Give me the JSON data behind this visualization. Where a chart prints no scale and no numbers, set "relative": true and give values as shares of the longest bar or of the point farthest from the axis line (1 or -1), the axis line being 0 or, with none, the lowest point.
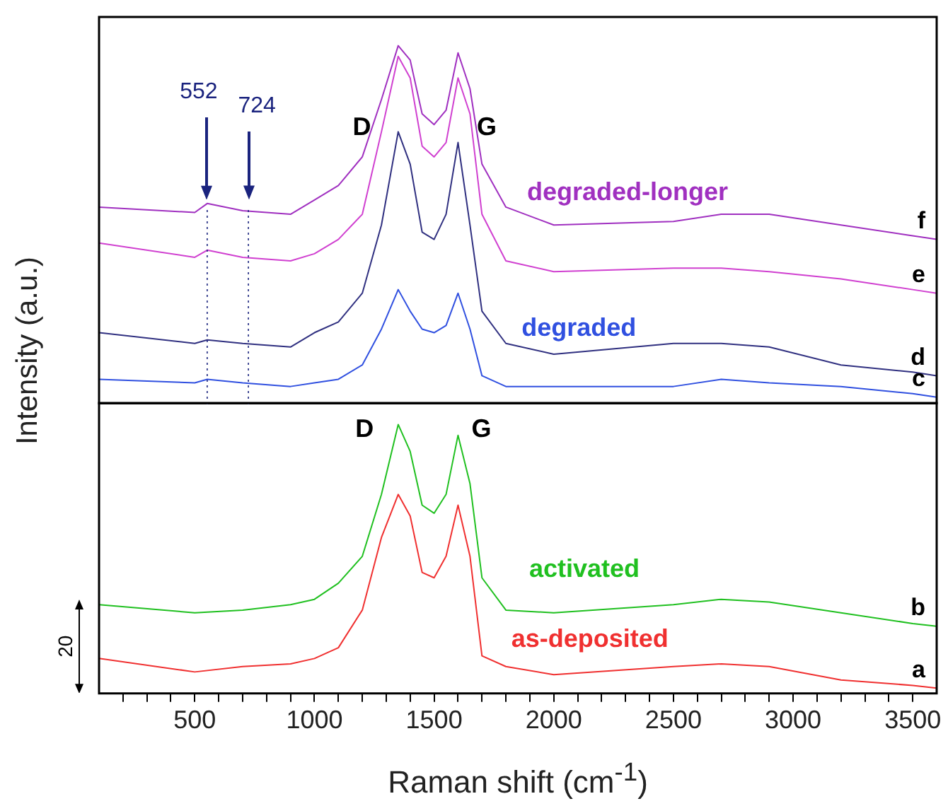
{
  "chart_data": [
    {
      "type": "line",
      "relative": true,
      "tick_labels": false,
      "legend": false,
      "ylabel": "Intensity (a.u.)",
      "xlim": [
        100,
        3600
      ],
      "x": [
        100,
        500,
        552,
        700,
        900,
        1000,
        1100,
        1200,
        1280,
        1350,
        1400,
        1450,
        1500,
        1550,
        1600,
        1650,
        1700,
        1800,
        2000,
        2500,
        2700,
        2900,
        3200,
        3500,
        3600
      ],
      "series": [
        {
          "name": "f",
          "color": "#a030c0",
          "values": [
            0.55,
            0.535,
            0.56,
            0.54,
            0.53,
            0.57,
            0.61,
            0.69,
            0.85,
            1.0,
            0.96,
            0.81,
            0.78,
            0.82,
            0.98,
            0.88,
            0.67,
            0.55,
            0.5,
            0.51,
            0.53,
            0.53,
            0.5,
            0.47,
            0.46
          ]
        },
        {
          "name": "e",
          "color": "#d040d0",
          "values": [
            0.45,
            0.41,
            0.43,
            0.41,
            0.4,
            0.42,
            0.46,
            0.53,
            0.76,
            0.97,
            0.91,
            0.72,
            0.69,
            0.73,
            0.91,
            0.81,
            0.53,
            0.4,
            0.37,
            0.38,
            0.38,
            0.37,
            0.35,
            0.32,
            0.31
          ]
        },
        {
          "name": "d",
          "color": "#303080",
          "values": [
            0.2,
            0.17,
            0.18,
            0.17,
            0.16,
            0.2,
            0.23,
            0.31,
            0.5,
            0.76,
            0.67,
            0.48,
            0.46,
            0.53,
            0.73,
            0.5,
            0.26,
            0.17,
            0.14,
            0.17,
            0.17,
            0.16,
            0.11,
            0.09,
            0.08
          ]
        },
        {
          "name": "c",
          "color": "#3050e0",
          "values": [
            0.07,
            0.06,
            0.07,
            0.06,
            0.05,
            0.06,
            0.07,
            0.11,
            0.21,
            0.32,
            0.26,
            0.21,
            0.2,
            0.22,
            0.31,
            0.21,
            0.08,
            0.05,
            0.05,
            0.05,
            0.07,
            0.06,
            0.05,
            0.03,
            0.02
          ]
        }
      ],
      "ref_lines": [
        {
          "axis": "x",
          "value": 552,
          "label": "552",
          "color": "#1a237e",
          "line_style": "dotted"
        },
        {
          "axis": "x",
          "value": 724,
          "label": "724",
          "color": "#1a237e",
          "line_style": "dotted"
        }
      ],
      "annotations": [
        "D",
        "G",
        "degraded-longer",
        "degraded"
      ]
    },
    {
      "type": "line",
      "relative": true,
      "tick_labels": "x",
      "legend": false,
      "xlabel": "Raman shift (cm$^{-1}$)",
      "xlim": [
        100,
        3600
      ],
      "xticks": [
        {
          "value": 200,
          "label": null
        },
        {
          "value": 300,
          "label": null
        },
        {
          "value": 400,
          "label": null
        },
        500,
        {
          "value": 600,
          "label": null
        },
        {
          "value": 700,
          "label": null
        },
        {
          "value": 800,
          "label": null
        },
        {
          "value": 900,
          "label": null
        },
        1000,
        {
          "value": 1100,
          "label": null
        },
        {
          "value": 1200,
          "label": null
        },
        {
          "value": 1300,
          "label": null
        },
        {
          "value": 1400,
          "label": null
        },
        1500,
        {
          "value": 1600,
          "label": null
        },
        {
          "value": 1700,
          "label": null
        },
        {
          "value": 1800,
          "label": null
        },
        {
          "value": 1900,
          "label": null
        },
        2000,
        {
          "value": 2100,
          "label": null
        },
        {
          "value": 2200,
          "label": null
        },
        {
          "value": 2300,
          "label": null
        },
        {
          "value": 2400,
          "label": null
        },
        2500,
        {
          "value": 2600,
          "label": null
        },
        {
          "value": 2700,
          "label": null
        },
        {
          "value": 2800,
          "label": null
        },
        {
          "value": 2900,
          "label": null
        },
        3000,
        {
          "value": 3100,
          "label": null
        },
        {
          "value": 3200,
          "label": null
        },
        {
          "value": 3300,
          "label": null
        },
        {
          "value": 3400,
          "label": null
        },
        3500
      ],
      "x": [
        100,
        500,
        700,
        900,
        1000,
        1100,
        1200,
        1280,
        1350,
        1400,
        1450,
        1500,
        1550,
        1600,
        1650,
        1700,
        1800,
        2000,
        2500,
        2700,
        2900,
        3200,
        3500,
        3600
      ],
      "series": [
        {
          "name": "b",
          "color": "#20c020",
          "values": [
            0.33,
            0.3,
            0.31,
            0.33,
            0.35,
            0.41,
            0.51,
            0.74,
            1.0,
            0.9,
            0.7,
            0.67,
            0.74,
            0.96,
            0.78,
            0.43,
            0.31,
            0.3,
            0.33,
            0.35,
            0.34,
            0.3,
            0.26,
            0.25
          ]
        },
        {
          "name": "a",
          "color": "#f03030",
          "values": [
            0.13,
            0.08,
            0.1,
            0.11,
            0.13,
            0.17,
            0.31,
            0.58,
            0.74,
            0.66,
            0.45,
            0.43,
            0.51,
            0.7,
            0.51,
            0.14,
            0.1,
            0.07,
            0.1,
            0.11,
            0.1,
            0.05,
            0.03,
            0.02
          ]
        }
      ],
      "annotations": [
        "D",
        "G",
        "activated",
        "as-deposited",
        "20"
      ]
    }
  ]
}
